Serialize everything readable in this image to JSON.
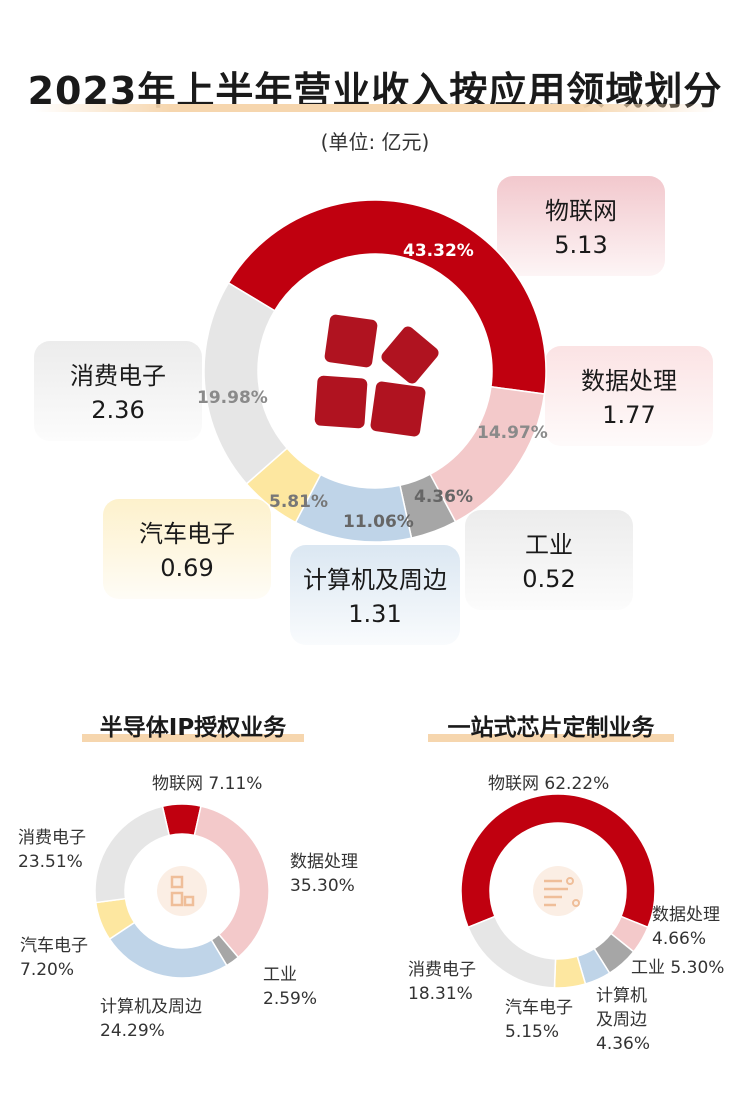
{
  "title": "2023年上半年营业收入按应用领域划分",
  "unit": "(单位: 亿元)",
  "main_cards": [
    {
      "name": "物联网",
      "value": "5.13"
    },
    {
      "name": "数据处理",
      "value": "1.77"
    },
    {
      "name": "工业",
      "value": "0.52"
    },
    {
      "name": "计算机及周边",
      "value": "1.31"
    },
    {
      "name": "汽车电子",
      "value": "0.69"
    },
    {
      "name": "消费电子",
      "value": "2.36"
    }
  ],
  "main_pct_labels": [
    "43.32%",
    "14.97%",
    "4.36%",
    "11.06%",
    "5.81%",
    "19.98%"
  ],
  "sub_titles": {
    "left": "半导体IP授权业务",
    "right": "一站式芯片定制业务"
  },
  "left_labels": [
    {
      "name": "物联网",
      "pct": "7.11%"
    },
    {
      "name": "数据处理",
      "pct": "35.30%"
    },
    {
      "name": "工业",
      "pct": "2.59%"
    },
    {
      "name": "计算机及周边",
      "pct": "24.29%"
    },
    {
      "name": "汽车电子",
      "pct": "7.20%"
    },
    {
      "name": "消费电子",
      "pct": "23.51%"
    }
  ],
  "right_labels": [
    {
      "name": "物联网",
      "pct": "62.22%"
    },
    {
      "name": "数据处理",
      "pct": "4.66%"
    },
    {
      "name": "工业",
      "pct": "5.30%"
    },
    {
      "name": "计算机",
      "name2": "及周边",
      "pct": "4.36%"
    },
    {
      "name": "汽车电子",
      "pct": "5.15%"
    },
    {
      "name": "消费电子",
      "pct": "18.31%"
    }
  ],
  "colors": {
    "iot": "#c0000f",
    "data": "#f3c9ca",
    "industrial": "#a6a6a6",
    "computer": "#bfd4e8",
    "auto": "#fde7a0",
    "consumer": "#e6e6e6"
  },
  "chart_data": [
    {
      "type": "pie",
      "title": "2023年上半年营业收入按应用领域划分",
      "unit": "亿元",
      "categories": [
        "物联网",
        "数据处理",
        "工业",
        "计算机及周边",
        "汽车电子",
        "消费电子"
      ],
      "values": [
        5.13,
        1.77,
        0.52,
        1.31,
        0.69,
        2.36
      ],
      "percentages": [
        43.32,
        14.97,
        4.36,
        11.06,
        5.81,
        19.98
      ]
    },
    {
      "type": "pie",
      "title": "半导体IP授权业务",
      "categories": [
        "物联网",
        "数据处理",
        "工业",
        "计算机及周边",
        "汽车电子",
        "消费电子"
      ],
      "percentages": [
        7.11,
        35.3,
        2.59,
        24.29,
        7.2,
        23.51
      ]
    },
    {
      "type": "pie",
      "title": "一站式芯片定制业务",
      "categories": [
        "物联网",
        "数据处理",
        "工业",
        "计算机及周边",
        "汽车电子",
        "消费电子"
      ],
      "percentages": [
        62.22,
        4.66,
        5.3,
        4.36,
        5.15,
        18.31
      ]
    }
  ]
}
